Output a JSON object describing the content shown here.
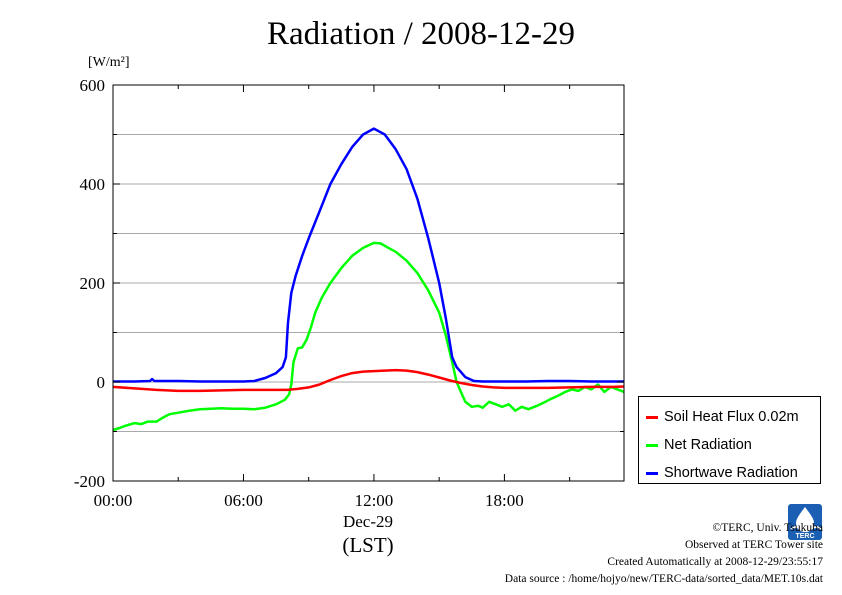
{
  "chart_data": {
    "type": "line",
    "title": "Radiation / 2008-12-29",
    "ylabel": "[W/m²]",
    "xlabel": "(LST)",
    "x_date_label": "Dec-29",
    "x_unit": "hour",
    "xlim": [
      0,
      23.5
    ],
    "ylim": [
      -200,
      600
    ],
    "yticks": [
      -200,
      0,
      200,
      400,
      600
    ],
    "ytick_labels": [
      "-200",
      "0",
      "200",
      "400",
      "600"
    ],
    "xticks": [
      0,
      6,
      12,
      18
    ],
    "xtick_labels": [
      "00:00",
      "06:00",
      "12:00",
      "18:00"
    ],
    "grid": true,
    "legend_position": "outside-right-bottom",
    "series": [
      {
        "name": "Soil Heat Flux 0.02m",
        "color": "#ff0000",
        "points": [
          [
            0,
            -10
          ],
          [
            1,
            -13
          ],
          [
            2,
            -16
          ],
          [
            3,
            -18
          ],
          [
            4,
            -18
          ],
          [
            5,
            -17
          ],
          [
            6,
            -16
          ],
          [
            7,
            -16
          ],
          [
            8,
            -16
          ],
          [
            8.5,
            -14
          ],
          [
            9,
            -11
          ],
          [
            9.5,
            -5
          ],
          [
            10,
            4
          ],
          [
            10.5,
            12
          ],
          [
            11,
            18
          ],
          [
            11.5,
            21
          ],
          [
            12,
            22
          ],
          [
            12.5,
            23
          ],
          [
            13,
            24
          ],
          [
            13.5,
            23
          ],
          [
            14,
            20
          ],
          [
            14.5,
            15
          ],
          [
            15,
            9
          ],
          [
            15.5,
            3
          ],
          [
            16,
            -2
          ],
          [
            16.5,
            -6
          ],
          [
            17,
            -9
          ],
          [
            17.5,
            -11
          ],
          [
            18,
            -12
          ],
          [
            19,
            -12
          ],
          [
            20,
            -12
          ],
          [
            21,
            -11
          ],
          [
            22,
            -10
          ],
          [
            23,
            -10
          ],
          [
            23.5,
            -9
          ]
        ]
      },
      {
        "name": "Net Radiation",
        "color": "#00ff00",
        "points": [
          [
            0,
            -97
          ],
          [
            0.3,
            -93
          ],
          [
            0.6,
            -88
          ],
          [
            1,
            -83
          ],
          [
            1.3,
            -85
          ],
          [
            1.6,
            -80
          ],
          [
            2,
            -80
          ],
          [
            2.3,
            -72
          ],
          [
            2.6,
            -65
          ],
          [
            3,
            -62
          ],
          [
            3.5,
            -58
          ],
          [
            4,
            -55
          ],
          [
            4.5,
            -54
          ],
          [
            5,
            -53
          ],
          [
            5.5,
            -54
          ],
          [
            6,
            -54
          ],
          [
            6.5,
            -55
          ],
          [
            7,
            -52
          ],
          [
            7.5,
            -45
          ],
          [
            7.9,
            -36
          ],
          [
            8.1,
            -25
          ],
          [
            8.2,
            -5
          ],
          [
            8.3,
            40
          ],
          [
            8.5,
            68
          ],
          [
            8.7,
            70
          ],
          [
            8.9,
            85
          ],
          [
            9.1,
            110
          ],
          [
            9.3,
            140
          ],
          [
            9.6,
            170
          ],
          [
            10,
            200
          ],
          [
            10.5,
            230
          ],
          [
            11,
            255
          ],
          [
            11.5,
            271
          ],
          [
            12,
            281
          ],
          [
            12.3,
            280
          ],
          [
            12.7,
            270
          ],
          [
            13,
            263
          ],
          [
            13.5,
            245
          ],
          [
            14,
            220
          ],
          [
            14.5,
            185
          ],
          [
            15,
            140
          ],
          [
            15.3,
            95
          ],
          [
            15.6,
            40
          ],
          [
            15.8,
            0
          ],
          [
            16,
            -20
          ],
          [
            16.2,
            -40
          ],
          [
            16.5,
            -50
          ],
          [
            16.8,
            -48
          ],
          [
            17,
            -52
          ],
          [
            17.3,
            -40
          ],
          [
            17.6,
            -45
          ],
          [
            17.9,
            -50
          ],
          [
            18.2,
            -45
          ],
          [
            18.5,
            -58
          ],
          [
            18.8,
            -50
          ],
          [
            19.1,
            -55
          ],
          [
            19.5,
            -48
          ],
          [
            19.8,
            -42
          ],
          [
            20.1,
            -35
          ],
          [
            20.5,
            -27
          ],
          [
            20.8,
            -20
          ],
          [
            21.1,
            -15
          ],
          [
            21.4,
            -18
          ],
          [
            21.7,
            -10
          ],
          [
            22,
            -15
          ],
          [
            22.3,
            -5
          ],
          [
            22.6,
            -20
          ],
          [
            22.9,
            -10
          ],
          [
            23.2,
            -15
          ],
          [
            23.5,
            -20
          ]
        ]
      },
      {
        "name": "Shortwave Radiation",
        "color": "#0000ff",
        "points": [
          [
            0,
            1
          ],
          [
            1,
            1
          ],
          [
            1.7,
            2
          ],
          [
            1.8,
            6
          ],
          [
            1.9,
            2
          ],
          [
            3,
            2
          ],
          [
            4,
            1
          ],
          [
            5,
            1
          ],
          [
            6,
            1
          ],
          [
            6.5,
            2
          ],
          [
            7,
            8
          ],
          [
            7.5,
            18
          ],
          [
            7.8,
            30
          ],
          [
            7.95,
            50
          ],
          [
            8.05,
            120
          ],
          [
            8.2,
            180
          ],
          [
            8.4,
            215
          ],
          [
            8.7,
            255
          ],
          [
            9,
            290
          ],
          [
            9.5,
            345
          ],
          [
            10,
            400
          ],
          [
            10.5,
            440
          ],
          [
            11,
            475
          ],
          [
            11.5,
            500
          ],
          [
            12,
            512
          ],
          [
            12.5,
            500
          ],
          [
            13,
            470
          ],
          [
            13.5,
            430
          ],
          [
            14,
            370
          ],
          [
            14.5,
            290
          ],
          [
            15,
            200
          ],
          [
            15.3,
            130
          ],
          [
            15.6,
            50
          ],
          [
            15.8,
            30
          ],
          [
            16.2,
            10
          ],
          [
            16.6,
            2
          ],
          [
            17,
            1
          ],
          [
            18,
            1
          ],
          [
            19,
            1
          ],
          [
            20,
            2
          ],
          [
            21,
            2
          ],
          [
            22,
            1
          ],
          [
            23,
            1
          ],
          [
            23.5,
            1
          ]
        ]
      }
    ]
  },
  "credits": {
    "line1": "©TERC, Univ. Tsukuba",
    "line2": "Observed at TERC Tower site",
    "line3": "Created Automatically at 2008-12-29/23:55:17",
    "line4": "Data source : /home/hojyo/new/TERC-data/sorted_data/MET.10s.dat"
  },
  "logo": {
    "text": "TERC",
    "color": "#1a5fb4"
  }
}
